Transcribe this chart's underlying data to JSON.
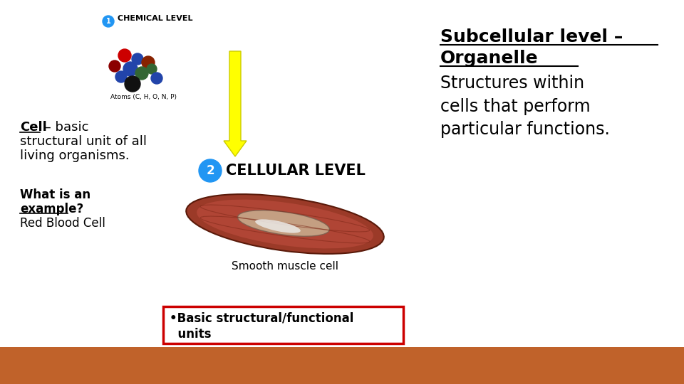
{
  "bg_color": "#ffffff",
  "bottom_bar_color": "#c0622a",
  "title_line1": "Subcellular level –",
  "title_line2": "Organelle",
  "subtitle_text": "Structures within\ncells that perform\nparticular functions.",
  "chemical_level_label": "CHEMICAL LEVEL",
  "cellular_level_label": "CELLULAR LEVEL",
  "atoms_label": "Atoms (C, H, O, N, P)",
  "smooth_cell_label": "Smooth muscle cell",
  "bullet_text": "•Basic structural/functional\n  units",
  "arrow_color": "#ffff00",
  "circle1_color": "#2196f3",
  "circle2_color": "#2196f3",
  "circle1_text": "1",
  "circle2_text": "2",
  "box_border_color": "#cc0000",
  "box_bg_color": "#ffffff",
  "atom_data": [
    [
      175,
      462,
      9,
      "#cc0000"
    ],
    [
      193,
      457,
      8,
      "#2244aa"
    ],
    [
      208,
      452,
      9,
      "#882200"
    ],
    [
      183,
      443,
      10,
      "#2244aa"
    ],
    [
      199,
      437,
      9,
      "#336633"
    ],
    [
      170,
      432,
      8,
      "#2244aa"
    ],
    [
      186,
      422,
      11,
      "#111111"
    ],
    [
      213,
      443,
      7,
      "#336633"
    ],
    [
      220,
      430,
      8,
      "#2244aa"
    ],
    [
      161,
      447,
      8,
      "#8B0000"
    ]
  ]
}
